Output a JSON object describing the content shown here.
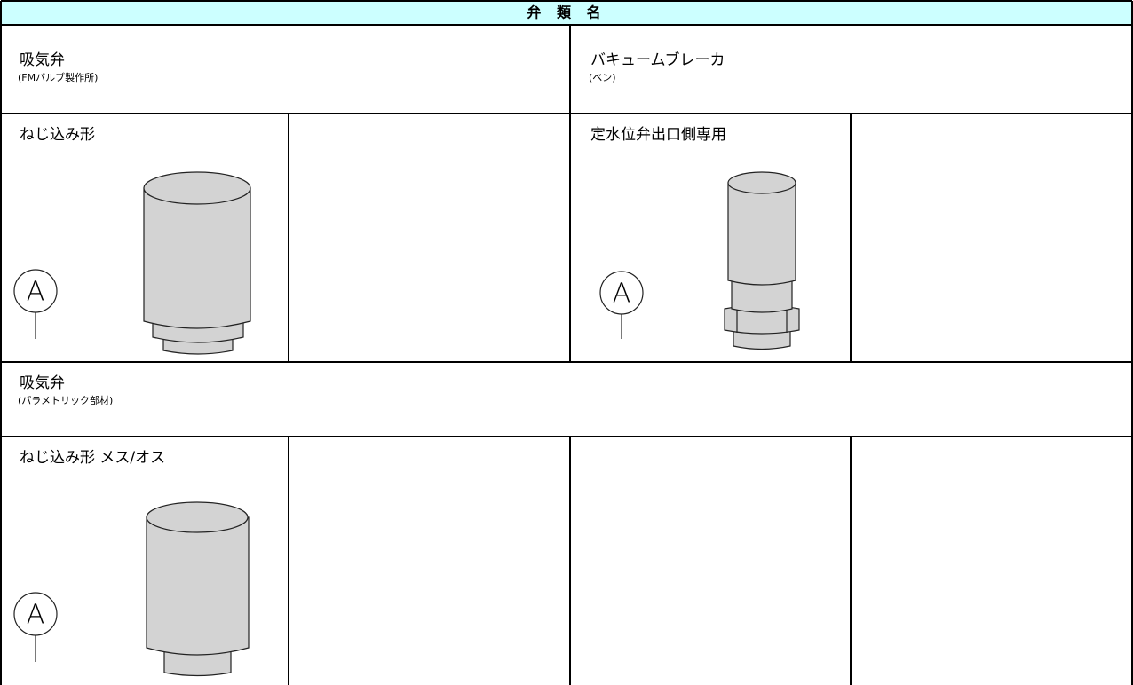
{
  "header": {
    "title": "弁 類 名"
  },
  "sections": [
    {
      "name": "吸気弁",
      "maker": "(FMバルブ製作所)",
      "items": [
        {
          "label": "ねじ込み形",
          "symbol": "A"
        }
      ]
    },
    {
      "name": "バキュームブレーカ",
      "maker": "(ベン)",
      "items": [
        {
          "label": "定水位弁出口側専用",
          "symbol": "A"
        }
      ]
    },
    {
      "name": "吸気弁",
      "maker": "(パラメトリック部材)",
      "items": [
        {
          "label": "ねじ込み形 メス/オス",
          "symbol": "A"
        }
      ]
    }
  ]
}
